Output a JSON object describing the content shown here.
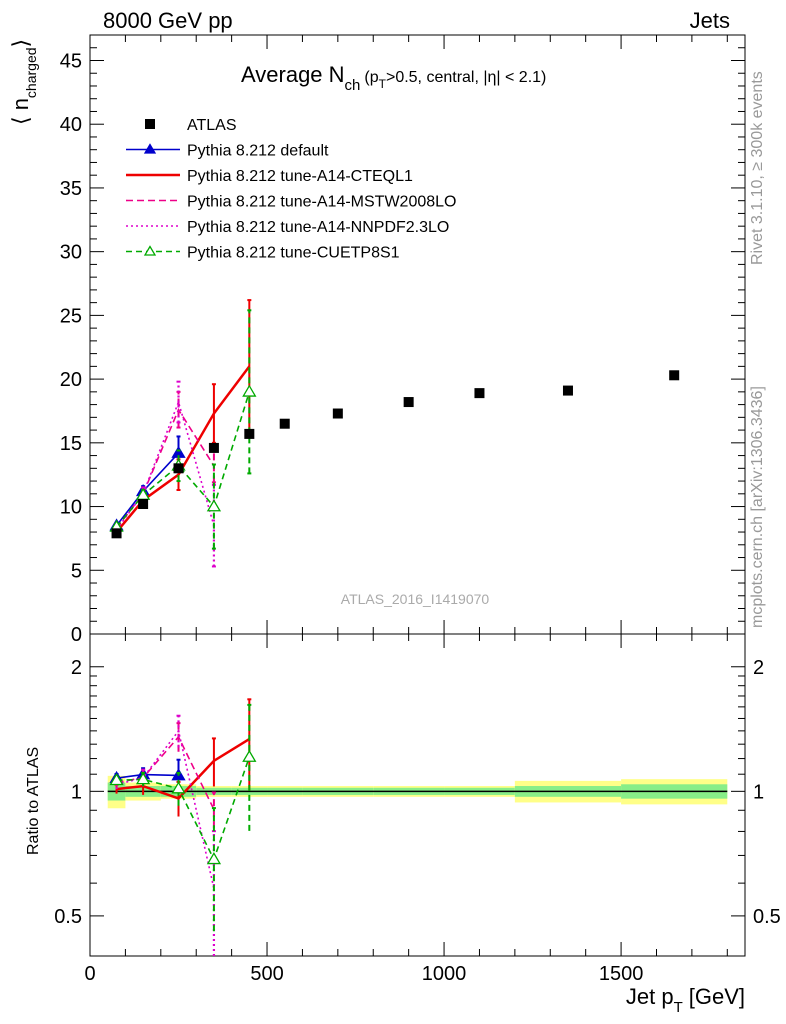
{
  "header": {
    "left": "8000 GeV pp",
    "right": "Jets"
  },
  "side_labels": {
    "top": "Rivet 3.1.10, ≥ 300k events",
    "bottom": "mcplots.cern.ch [arXiv:1306.3436]"
  },
  "watermark": "ATLAS_2016_I1419070",
  "chart_data": {
    "type": "line",
    "title": {
      "main": "Average N",
      "sub": "ch",
      "details": "(p",
      "details_sub": "T",
      "details_end": ">0.5, central, |η| < 2.1)"
    },
    "xlabel": "Jet p",
    "xlabel_sub": "T",
    "xlabel_unit": "[GeV]",
    "ylabel": "⟨ n",
    "ylabel_sub": "charged",
    "ylabel_end": "⟩",
    "ratio_ylabel": "Ratio to ATLAS",
    "xlim": [
      0,
      1850
    ],
    "ylim": [
      0,
      47
    ],
    "ratio_ylim": [
      0.4,
      2.4
    ],
    "x_ticks": [
      "0",
      "500",
      "1000",
      "1500"
    ],
    "y_ticks": [
      "0",
      "5",
      "10",
      "15",
      "20",
      "25",
      "30",
      "35",
      "40",
      "45"
    ],
    "ratio_y_ticks": [
      "0.5",
      "1",
      "2"
    ],
    "data": {
      "name": "ATLAS",
      "x": [
        75,
        150,
        250,
        350,
        450,
        550,
        700,
        900,
        1100,
        1350,
        1650
      ],
      "xlow": [
        50,
        100,
        200,
        300,
        400,
        500,
        600,
        800,
        1000,
        1200,
        1500
      ],
      "xhigh": [
        100,
        200,
        300,
        400,
        500,
        600,
        800,
        1000,
        1200,
        1500,
        1800
      ],
      "y": [
        7.9,
        10.2,
        13.0,
        14.6,
        15.7,
        16.5,
        17.3,
        18.2,
        18.9,
        19.1,
        20.3
      ],
      "band_inner": [
        0.05,
        0.03,
        0.03,
        0.02,
        0.02,
        0.02,
        0.02,
        0.02,
        0.02,
        0.03,
        0.04
      ],
      "band_outer": [
        0.09,
        0.05,
        0.04,
        0.03,
        0.03,
        0.03,
        0.03,
        0.03,
        0.03,
        0.06,
        0.07
      ]
    },
    "series": [
      {
        "name": "Pythia 8.212 default",
        "color": "#0000cc",
        "dash": "",
        "marker": "triangle-filled",
        "x": [
          75,
          150,
          250
        ],
        "y": [
          8.5,
          11.2,
          14.2
        ],
        "err": [
          0.2,
          0.4,
          1.3
        ]
      },
      {
        "name": "Pythia 8.212 tune-A14-CTEQL1",
        "color": "#ee0000",
        "dash": "",
        "marker": "none",
        "x": [
          75,
          150,
          250,
          350,
          450
        ],
        "y": [
          8.0,
          10.5,
          12.5,
          17.3,
          21.0
        ],
        "err": [
          0.2,
          0.5,
          1.2,
          2.3,
          5.2
        ]
      },
      {
        "name": "Pythia 8.212 tune-A14-MSTW2008LO",
        "color": "#ee0088",
        "dash": "7,4",
        "marker": "none",
        "x": [
          75,
          150,
          250,
          350
        ],
        "y": [
          8.3,
          11.0,
          17.6,
          13.2
        ],
        "err": [
          0.2,
          0.5,
          1.4,
          1.3
        ]
      },
      {
        "name": "Pythia 8.212 tune-A14-NNPDF2.3LO",
        "color": "#dd00cc",
        "dash": "2,3",
        "marker": "none",
        "x": [
          75,
          150,
          250,
          350
        ],
        "y": [
          8.2,
          11.0,
          18.2,
          8.5
        ],
        "err": [
          0.2,
          0.5,
          1.6,
          3.2
        ]
      },
      {
        "name": "Pythia 8.212 tune-CUETP8S1",
        "color": "#00aa00",
        "dash": "6,4",
        "marker": "triangle-open",
        "x": [
          75,
          150,
          250,
          350,
          450
        ],
        "y": [
          8.4,
          10.9,
          13.2,
          10.0,
          19.0
        ],
        "err": [
          0.2,
          0.4,
          1.2,
          3.3,
          6.4
        ]
      }
    ],
    "grid": false,
    "legend_position": "top-left"
  }
}
